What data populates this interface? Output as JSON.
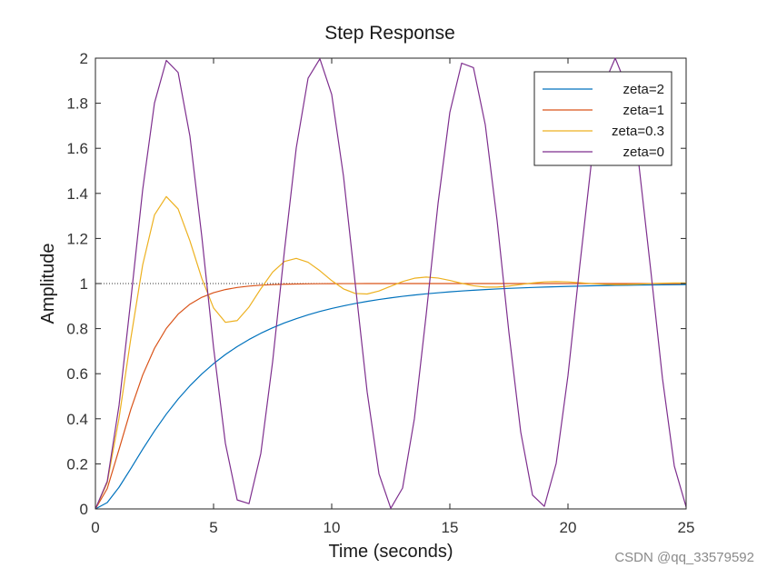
{
  "chart_data": {
    "type": "line",
    "title": "Step Response",
    "xlabel": "Time (seconds)",
    "ylabel": "Amplitude",
    "xlim": [
      0,
      25
    ],
    "ylim": [
      0,
      2
    ],
    "xticks": [
      0,
      5,
      10,
      15,
      20,
      25
    ],
    "xtick_labels": [
      "0",
      "5",
      "10",
      "15",
      "20",
      "25"
    ],
    "yticks": [
      0,
      0.2,
      0.4,
      0.6,
      0.8,
      1,
      1.2,
      1.4,
      1.6,
      1.8,
      2
    ],
    "ytick_labels": [
      "0",
      "0.2",
      "0.4",
      "0.6",
      "0.8",
      "1",
      "1.2",
      "1.4",
      "1.6",
      "1.8",
      "2"
    ],
    "grid": false,
    "legend_position": "top-right",
    "steady_state_reference": 1,
    "x": [
      0,
      0.5,
      1,
      1.5,
      2,
      2.5,
      3,
      3.5,
      4,
      4.5,
      5,
      5.5,
      6,
      6.5,
      7,
      7.5,
      8,
      8.5,
      9,
      9.5,
      10,
      10.5,
      11,
      11.5,
      12,
      12.5,
      13,
      13.5,
      14,
      14.5,
      15,
      15.5,
      16,
      16.5,
      17,
      17.5,
      18,
      18.5,
      19,
      19.5,
      20,
      20.5,
      21,
      21.5,
      22,
      22.5,
      23,
      23.5,
      24,
      24.5,
      25
    ],
    "series": [
      {
        "name": "zeta=2",
        "color": "#0072BD",
        "values": [
          0,
          0.0283,
          0.0963,
          0.1793,
          0.2647,
          0.3461,
          0.4206,
          0.4873,
          0.5465,
          0.5986,
          0.6445,
          0.6849,
          0.7204,
          0.7517,
          0.7793,
          0.8037,
          0.8252,
          0.8442,
          0.8611,
          0.8761,
          0.8893,
          0.9011,
          0.9116,
          0.9209,
          0.9292,
          0.9366,
          0.9432,
          0.9491,
          0.9543,
          0.959,
          0.9632,
          0.967,
          0.9703,
          0.9734,
          0.9761,
          0.9785,
          0.9807,
          0.9826,
          0.9844,
          0.986,
          0.9874,
          0.9887,
          0.9898,
          0.9908,
          0.9918,
          0.9926,
          0.9933,
          0.994,
          0.9946,
          0.9951,
          0.9956
        ]
      },
      {
        "name": "zeta=1",
        "color": "#D95319",
        "values": [
          0,
          0.0902,
          0.2642,
          0.4422,
          0.594,
          0.7127,
          0.8009,
          0.8641,
          0.9084,
          0.9389,
          0.9596,
          0.9734,
          0.9826,
          0.9887,
          0.9927,
          0.9953,
          0.997,
          0.9981,
          0.9988,
          0.9992,
          0.9995,
          0.9997,
          0.9998,
          0.9999,
          0.9999,
          1,
          1,
          1,
          1,
          1,
          1,
          1,
          1,
          1,
          1,
          1,
          1,
          1,
          1,
          1,
          1,
          1,
          1,
          1,
          1,
          1,
          1,
          1,
          1,
          1,
          1
        ]
      },
      {
        "name": "zeta=0.3",
        "color": "#EDB120",
        "values": [
          0,
          0.1166,
          0.4028,
          0.7576,
          1.0827,
          1.3045,
          1.3859,
          1.3309,
          1.1893,
          1.0235,
          0.8915,
          0.8279,
          0.8357,
          0.8958,
          0.9769,
          1.0507,
          1.0982,
          1.1118,
          1.0945,
          1.0568,
          1.0129,
          0.9763,
          0.9558,
          0.9536,
          0.9669,
          0.9881,
          1.009,
          1.0236,
          1.0287,
          1.0245,
          1.0138,
          1.0011,
          0.9903,
          0.9844,
          0.9843,
          0.9888,
          0.9958,
          1.0026,
          1.0072,
          1.0087,
          1.0072,
          1.0037,
          0.9998,
          0.9968,
          0.9955,
          0.9959,
          0.9976,
          0.9998,
          1.0017,
          1.0027,
          1.0026
        ]
      },
      {
        "name": "zeta=0",
        "color": "#7E2F8E",
        "values": [
          0,
          0.1224,
          0.4597,
          0.9293,
          1.4161,
          1.8011,
          1.99,
          1.9365,
          1.6536,
          1.2108,
          0.7163,
          0.2913,
          0.0398,
          0.0234,
          0.2461,
          0.6536,
          1.1455,
          1.602,
          1.9111,
          1.9972,
          1.8391,
          1.4755,
          0.9956,
          0.5193,
          0.1562,
          0.0026,
          0.0928,
          0.4004,
          0.8633,
          1.3548,
          1.7597,
          1.9778,
          1.9577,
          1.7044,
          1.2794,
          0.7837,
          0.3415,
          0.0611,
          0.0115,
          0.2017,
          0.5919,
          1.0794,
          1.5464,
          1.8784,
          1.9999,
          1.8698,
          1.5289,
          1.0619,
          0.5783,
          0.1903,
          0.0088
        ]
      }
    ]
  },
  "watermark": "CSDN @qq_33579592"
}
